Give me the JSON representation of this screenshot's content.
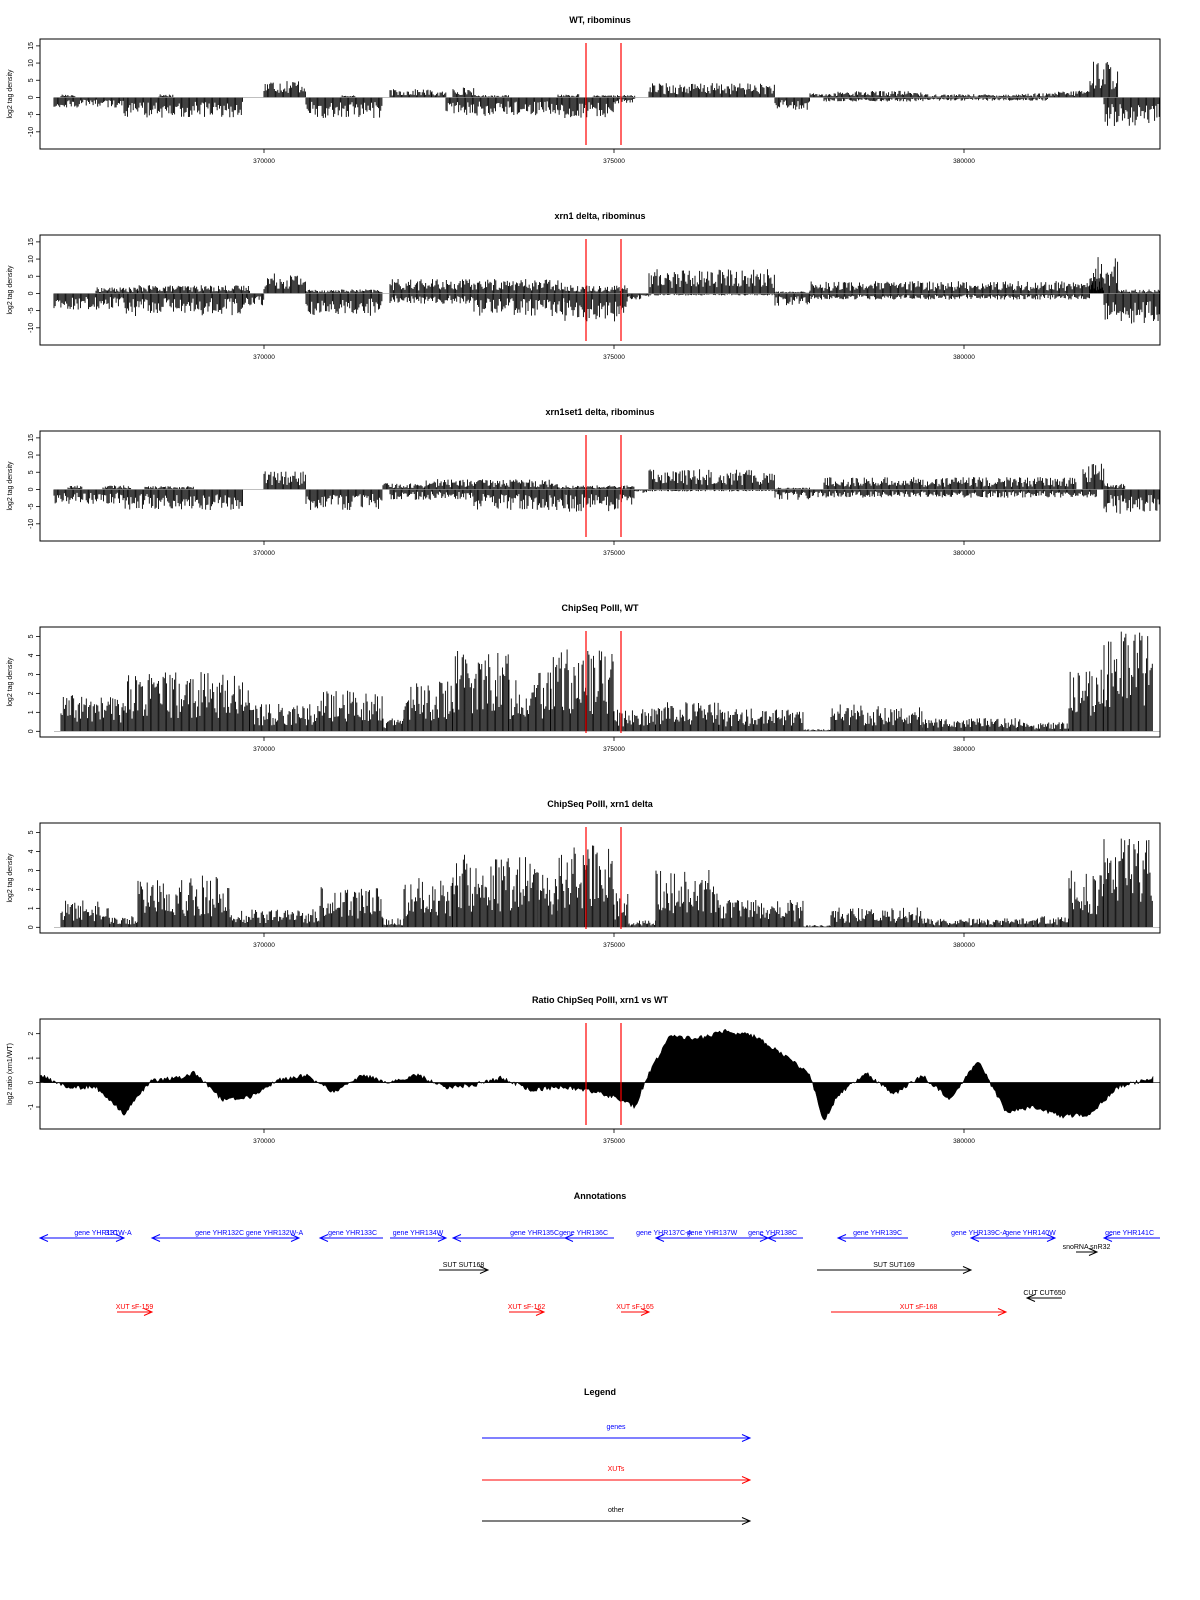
{
  "colors": {
    "gene": "#0000ff",
    "xut": "#ff0000",
    "other": "#000000",
    "highlight": "#ff0000",
    "bars": "#000000"
  },
  "x_axis": {
    "range": [
      366800,
      382800
    ],
    "ticks": [
      370000,
      375000,
      380000
    ],
    "tick_labels": [
      "370000",
      "375000",
      "380000"
    ]
  },
  "highlight_positions": [
    374600,
    375100
  ],
  "chart_data": [
    {
      "id": "wt-ribominus",
      "type": "bar",
      "title": "WT, ribominus",
      "ylabel": "log2 tag density",
      "ylim": [
        -15,
        17
      ],
      "yticks": [
        -10,
        -5,
        0,
        5,
        10,
        15
      ],
      "ytick_labels": [
        "-10",
        "-5",
        "0",
        "5",
        "10",
        "15"
      ],
      "series": [
        {
          "strand": "plus",
          "segments": [
            [
              367100,
              367300,
              0.8
            ],
            [
              368500,
              368700,
              0.8
            ],
            [
              370000,
              370600,
              4.5
            ],
            [
              371100,
              371300,
              0.5
            ],
            [
              371800,
              372400,
              2
            ],
            [
              372400,
              372600,
              1.5
            ],
            [
              372700,
              373000,
              2.5
            ],
            [
              373000,
              373500,
              0.6
            ],
            [
              374200,
              374500,
              0.8
            ],
            [
              374700,
              375000,
              0.5
            ],
            [
              375000,
              375300,
              0.6
            ],
            [
              375500,
              377300,
              3.5
            ],
            [
              377800,
              378200,
              1
            ],
            [
              378200,
              379400,
              1.6
            ],
            [
              379400,
              380800,
              0.8
            ],
            [
              380800,
              381300,
              1
            ],
            [
              381300,
              381600,
              1.5
            ],
            [
              381600,
              381800,
              2
            ],
            [
              381800,
              382200,
              9
            ]
          ]
        },
        {
          "strand": "minus",
          "segments": [
            [
              367000,
              368000,
              -2.5
            ],
            [
              368000,
              369700,
              -5
            ],
            [
              370600,
              371700,
              -5
            ],
            [
              372600,
              374200,
              -4.5
            ],
            [
              374200,
              375000,
              -5
            ],
            [
              375000,
              375300,
              -1.5
            ],
            [
              377300,
              377800,
              -3
            ],
            [
              378000,
              379500,
              -1
            ],
            [
              379500,
              381200,
              -0.8
            ],
            [
              382000,
              382800,
              -7
            ]
          ]
        }
      ]
    },
    {
      "id": "xrn1-ribominus",
      "type": "bar",
      "title": "xrn1 delta, ribominus",
      "ylabel": "log2 tag density",
      "ylim": [
        -15,
        17
      ],
      "yticks": [
        -10,
        -5,
        0,
        5,
        10,
        15
      ],
      "ytick_labels": [
        "-10",
        "-5",
        "0",
        "5",
        "10",
        "15"
      ],
      "series": [
        {
          "strand": "plus",
          "segments": [
            [
              367600,
              368200,
              1.5
            ],
            [
              368200,
              369800,
              2
            ],
            [
              370000,
              370600,
              5
            ],
            [
              370600,
              371700,
              1
            ],
            [
              371800,
              374300,
              3.5
            ],
            [
              374300,
              375200,
              2
            ],
            [
              375500,
              377300,
              6
            ],
            [
              377300,
              377800,
              0.5
            ],
            [
              377800,
              382000,
              3
            ],
            [
              381800,
              382200,
              9
            ],
            [
              382200,
              382800,
              1
            ]
          ]
        },
        {
          "strand": "minus",
          "segments": [
            [
              367000,
              368000,
              -4
            ],
            [
              368000,
              369700,
              -5.5
            ],
            [
              369700,
              370000,
              -3
            ],
            [
              370600,
              371700,
              -5.5
            ],
            [
              371800,
              373000,
              -2.5
            ],
            [
              373000,
              374300,
              -5.5
            ],
            [
              374300,
              375200,
              -7
            ],
            [
              375200,
              375500,
              -1.5
            ],
            [
              375500,
              377300,
              -0.5
            ],
            [
              377300,
              377800,
              -3
            ],
            [
              377800,
              381800,
              -1.5
            ],
            [
              382000,
              382800,
              -7.5
            ]
          ]
        }
      ]
    },
    {
      "id": "xrn1set1-ribominus",
      "type": "bar",
      "title": "xrn1set1 delta, ribominus",
      "ylabel": "log2 tag density",
      "ylim": [
        -15,
        17
      ],
      "yticks": [
        -10,
        -5,
        0,
        5,
        10,
        15
      ],
      "ytick_labels": [
        "-10",
        "-5",
        "0",
        "5",
        "10",
        "15"
      ],
      "series": [
        {
          "strand": "plus",
          "segments": [
            [
              367200,
              367400,
              1
            ],
            [
              367700,
              368100,
              1
            ],
            [
              368300,
              369000,
              0.8
            ],
            [
              370000,
              370600,
              4.5
            ],
            [
              371700,
              372300,
              1.5
            ],
            [
              372300,
              374200,
              2.5
            ],
            [
              374200,
              375300,
              1
            ],
            [
              375500,
              377300,
              5
            ],
            [
              377300,
              377800,
              0.5
            ],
            [
              378000,
              381600,
              3
            ],
            [
              381700,
              382000,
              6.5
            ],
            [
              382000,
              382300,
              1.5
            ]
          ]
        },
        {
          "strand": "minus",
          "segments": [
            [
              367000,
              368000,
              -3.5
            ],
            [
              368000,
              369700,
              -5
            ],
            [
              370600,
              371700,
              -5
            ],
            [
              371800,
              373000,
              -2.5
            ],
            [
              373000,
              374300,
              -5
            ],
            [
              374300,
              375300,
              -5.5
            ],
            [
              375300,
              375500,
              -1
            ],
            [
              375500,
              377300,
              -0.5
            ],
            [
              377300,
              377800,
              -2.5
            ],
            [
              377800,
              381900,
              -2
            ],
            [
              382000,
              382800,
              -6
            ]
          ]
        }
      ]
    },
    {
      "id": "chipseq-polii-wt",
      "type": "bar",
      "title": "ChipSeq PolII, WT",
      "ylabel": "log2 tag density",
      "ylim": [
        -0.3,
        5.5
      ],
      "yticks": [
        0,
        1,
        2,
        3,
        4,
        5
      ],
      "ytick_labels": [
        "0",
        "1",
        "2",
        "3",
        "4",
        "5"
      ],
      "series": [
        {
          "strand": "plus",
          "segments": [
            [
              367100,
              368000,
              1.6
            ],
            [
              368000,
              369800,
              2.6
            ],
            [
              369800,
              370800,
              1.2
            ],
            [
              370800,
              371700,
              1.8
            ],
            [
              371700,
              372000,
              0.6
            ],
            [
              372000,
              372700,
              2.2
            ],
            [
              372700,
              373500,
              3.6
            ],
            [
              373500,
              374100,
              2.6
            ],
            [
              374100,
              375000,
              3.6
            ],
            [
              375000,
              375600,
              1
            ],
            [
              375600,
              376500,
              1.3
            ],
            [
              376500,
              377700,
              1
            ],
            [
              377700,
              378100,
              0.1
            ],
            [
              378100,
              379400,
              1.2
            ],
            [
              379400,
              380800,
              0.6
            ],
            [
              380800,
              381500,
              0.4
            ],
            [
              381500,
              382000,
              2.8
            ],
            [
              382000,
              382700,
              4.5
            ]
          ]
        }
      ]
    },
    {
      "id": "chipseq-polii-xrn1",
      "type": "bar",
      "title": "ChipSeq PolII, xrn1 delta",
      "ylabel": "log2 tag density",
      "ylim": [
        -0.3,
        5.5
      ],
      "yticks": [
        0,
        1,
        2,
        3,
        4,
        5
      ],
      "ytick_labels": [
        "0",
        "1",
        "2",
        "3",
        "4",
        "5"
      ],
      "series": [
        {
          "strand": "plus",
          "segments": [
            [
              367100,
              367800,
              1.2
            ],
            [
              367800,
              368200,
              0.5
            ],
            [
              368200,
              369500,
              2.3
            ],
            [
              369500,
              370800,
              0.8
            ],
            [
              370800,
              371700,
              1.8
            ],
            [
              371700,
              372000,
              0.4
            ],
            [
              372000,
              372700,
              2.2
            ],
            [
              372700,
              373900,
              3.2
            ],
            [
              373900,
              374200,
              2.5
            ],
            [
              374200,
              375000,
              3.6
            ],
            [
              375000,
              375200,
              1.5
            ],
            [
              375200,
              375600,
              0.3
            ],
            [
              375600,
              376500,
              2.6
            ],
            [
              376500,
              377700,
              1.2
            ],
            [
              377700,
              378100,
              0.1
            ],
            [
              378100,
              379400,
              0.9
            ],
            [
              379400,
              381000,
              0.4
            ],
            [
              381000,
              381500,
              0.5
            ],
            [
              381500,
              382000,
              2.5
            ],
            [
              382000,
              382700,
              4.2
            ]
          ]
        }
      ]
    },
    {
      "id": "ratio-chipseq-polii",
      "type": "area",
      "title": "Ratio ChipSeq PolII, xrn1 vs WT",
      "ylabel": "log2 ratio (xrn1/WT)",
      "ylim": [
        -1.9,
        2.6
      ],
      "yticks": [
        -1,
        0,
        1,
        2
      ],
      "ytick_labels": [
        "-1",
        "0",
        "1",
        "2"
      ],
      "series": [
        {
          "x": [
            366800,
            367200,
            367600,
            368000,
            368400,
            368800,
            369000,
            369400,
            369800,
            370200,
            370600,
            371000,
            371400,
            371800,
            372200,
            372600,
            373000,
            373400,
            373800,
            374200,
            374600,
            375000,
            375300,
            375500,
            375800,
            376200,
            376600,
            377000,
            377400,
            377800,
            378000,
            378200,
            378600,
            379000,
            379400,
            379800,
            380200,
            380600,
            381000,
            381400,
            381800,
            382200,
            382700
          ],
          "y": [
            0.3,
            -0.2,
            -0.2,
            -1.3,
            0.1,
            0.2,
            0.4,
            -0.7,
            -0.6,
            0.1,
            0.3,
            -0.4,
            0.3,
            0,
            0.3,
            -0.2,
            -0.1,
            0.2,
            -0.3,
            -0.2,
            -0.3,
            -0.6,
            -1.0,
            0.4,
            1.9,
            1.8,
            2.1,
            1.9,
            1.2,
            0.3,
            -1.6,
            -0.5,
            0.4,
            -0.5,
            0.3,
            -0.7,
            0.9,
            -1.2,
            -1.0,
            -1.4,
            -1.3,
            -0.2,
            0.2
          ]
        }
      ]
    }
  ],
  "annotations": {
    "title": "Annotations",
    "items": [
      {
        "label": "31C",
        "kind": "gene",
        "row": 0,
        "start": 366800,
        "end": 368000,
        "dir": "left"
      },
      {
        "label": "gene YHR131W-A",
        "kind": "gene",
        "row": 0,
        "start": 367400,
        "end": 368000,
        "dir": "right",
        "label_top": true
      },
      {
        "label": "gene YHR132C",
        "kind": "gene",
        "row": 0,
        "start": 368400,
        "end": 369800,
        "dir": "left"
      },
      {
        "label": "gene YHR132W-A",
        "kind": "gene",
        "row": 0,
        "start": 369800,
        "end": 370500,
        "dir": "right",
        "label_top": true
      },
      {
        "label": "gene YHR133C",
        "kind": "gene",
        "row": 0,
        "start": 370800,
        "end": 371700,
        "dir": "left"
      },
      {
        "label": "gene YHR134W",
        "kind": "gene",
        "row": 0,
        "start": 371800,
        "end": 372600,
        "dir": "right",
        "label_top": true
      },
      {
        "label": "gene YHR135C",
        "kind": "gene",
        "row": 0,
        "start": 372700,
        "end": 374300,
        "dir": "left"
      },
      {
        "label": "gene YHR136C",
        "kind": "gene",
        "row": 0,
        "start": 374300,
        "end": 375000,
        "dir": "left"
      },
      {
        "label": "gene YHR137W",
        "kind": "gene",
        "row": 0,
        "start": 375600,
        "end": 377200,
        "dir": "right",
        "label_top": true
      },
      {
        "label": "gene YHR137C-A",
        "kind": "gene",
        "row": 0,
        "start": 375600,
        "end": 376200,
        "dir": "left"
      },
      {
        "label": "gene YHR138C",
        "kind": "gene",
        "row": 0,
        "start": 377200,
        "end": 377700,
        "dir": "left"
      },
      {
        "label": "gene YHR139C",
        "kind": "gene",
        "row": 0,
        "start": 378200,
        "end": 379200,
        "dir": "left"
      },
      {
        "label": "gene YHR139C-A",
        "kind": "gene",
        "row": 0,
        "start": 380100,
        "end": 380700,
        "dir": "left"
      },
      {
        "label": "gene YHR140W",
        "kind": "gene",
        "row": 0,
        "start": 380600,
        "end": 381300,
        "dir": "right",
        "label_top": true
      },
      {
        "label": "gene YHR141C",
        "kind": "gene",
        "row": 0,
        "start": 382000,
        "end": 382800,
        "dir": "left"
      },
      {
        "label": "snoRNA snR32",
        "kind": "other",
        "row": 1,
        "start": 381600,
        "end": 381900,
        "dir": "right",
        "label_top": true
      },
      {
        "label": "SUT SUT168",
        "kind": "other",
        "row": 2,
        "start": 372500,
        "end": 373200,
        "dir": "right",
        "label_top": true
      },
      {
        "label": "SUT SUT169",
        "kind": "other",
        "row": 2,
        "start": 377900,
        "end": 380100,
        "dir": "right",
        "label_top": true
      },
      {
        "label": "CUT CUT650",
        "kind": "other",
        "row": 3,
        "start": 380900,
        "end": 381400,
        "dir": "left",
        "label_top": true
      },
      {
        "label": "XUT sF-159",
        "kind": "xut",
        "row": 4,
        "start": 367900,
        "end": 368400,
        "dir": "right",
        "label_top": true
      },
      {
        "label": "XUT sF-162",
        "kind": "xut",
        "row": 4,
        "start": 373500,
        "end": 374000,
        "dir": "right",
        "label_top": true
      },
      {
        "label": "XUT sF-165",
        "kind": "xut",
        "row": 4,
        "start": 375100,
        "end": 375500,
        "dir": "right",
        "label_top": true
      },
      {
        "label": "XUT sF-168",
        "kind": "xut",
        "row": 4,
        "start": 378100,
        "end": 380600,
        "dir": "right",
        "label_top": true
      }
    ]
  },
  "legend": {
    "title": "Legend",
    "entries": [
      {
        "label": "genes",
        "kind": "gene"
      },
      {
        "label": "XUTs",
        "kind": "xut"
      },
      {
        "label": "other",
        "kind": "other"
      }
    ]
  }
}
